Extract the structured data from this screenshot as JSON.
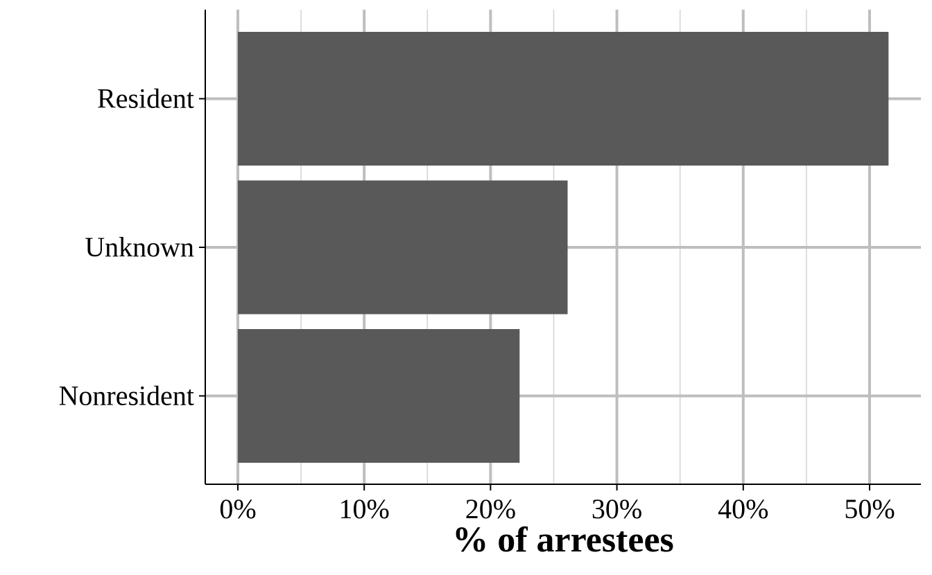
{
  "chart_data": {
    "type": "bar",
    "orientation": "horizontal",
    "categories": [
      "Resident",
      "Unknown",
      "Nonresident"
    ],
    "values": [
      51.5,
      26.1,
      22.3
    ],
    "value_unit": "percent",
    "xlabel": "% of arrestees",
    "ylabel": "",
    "xlim": [
      0,
      53
    ],
    "x_ticks": [
      0,
      10,
      20,
      30,
      40,
      50
    ],
    "x_tick_labels": [
      "0%",
      "10%",
      "20%",
      "30%",
      "40%",
      "50%"
    ],
    "grid": true,
    "legend": "none",
    "bar_color": "#595959",
    "grid_color": "#bebebe"
  }
}
